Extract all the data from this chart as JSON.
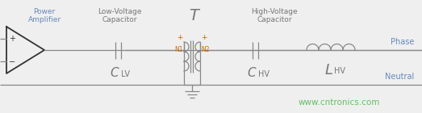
{
  "bg_color": "#efefef",
  "line_color": "#888888",
  "text_color": "#777777",
  "label_color": "#6688bb",
  "orange_color": "#cc6600",
  "green_watermark": "#55bb55",
  "watermark": "www.cntronics.com",
  "labels": {
    "power_amp": "Power\nAmplifier",
    "low_voltage_cap": "Low-Voltage\nCapacitor",
    "transformer": "T",
    "high_voltage_cap": "High-Voltage\nCapacitor",
    "clv": "C",
    "clv_sub": "LV",
    "chv": "C",
    "chv_sub": "HV",
    "lhv": "L",
    "lhv_sub": "HV",
    "n1": "N1",
    "n2": "N2",
    "phase": "Phase",
    "neutral": "Neutral"
  },
  "fig_width": 5.23,
  "fig_height": 1.4,
  "dpi": 100
}
